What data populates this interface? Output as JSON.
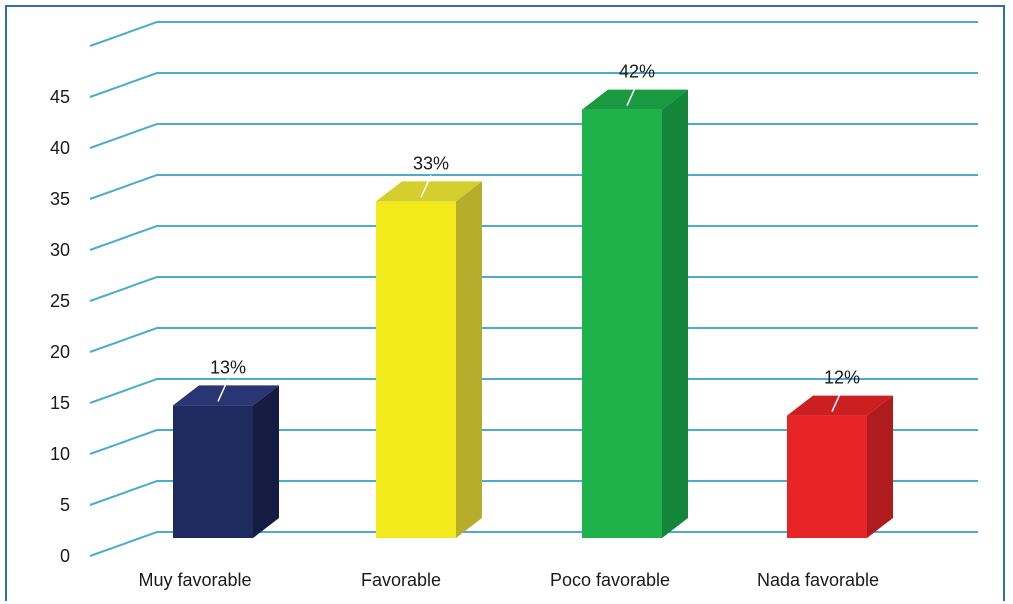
{
  "chart_data": {
    "type": "bar",
    "style": "3d-column",
    "categories": [
      "Muy favorable",
      "Favorable",
      "Poco favorable",
      "Nada favorable"
    ],
    "values": [
      13,
      33,
      42,
      12
    ],
    "data_labels": [
      "13%",
      "33%",
      "42%",
      "12%"
    ],
    "colors": [
      "#1f2a5e",
      "#f3ea1b",
      "#1fb24a",
      "#e82426"
    ],
    "side_colors": [
      "#141c42",
      "#b6ad2c",
      "#14863a",
      "#b01c1d"
    ],
    "top_colors": [
      "#2a3673",
      "#d4ce2f",
      "#1a9a40",
      "#cc1f22"
    ],
    "title": "",
    "xlabel": "",
    "ylabel": "",
    "ylim": [
      0,
      45
    ],
    "yticks": [
      "0",
      "5",
      "10",
      "15",
      "20",
      "25",
      "30",
      "35",
      "40",
      "45"
    ],
    "grid": true,
    "grid_color": "#4aaecb",
    "legend": "none"
  }
}
